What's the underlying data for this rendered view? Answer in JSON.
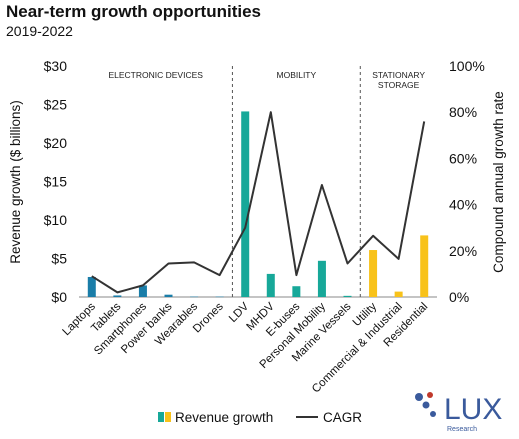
{
  "title": "Near-term growth opportunities",
  "subtitle": "2019-2022",
  "colors": {
    "teal": "#17A899",
    "blue": "#1A7DA8",
    "yellow": "#F8C21A",
    "line": "#333333",
    "divider": "#555555",
    "logo_blue": "#3A5A9C",
    "logo_red": "#C0392B"
  },
  "logo": {
    "name": "LUX",
    "tagline": "Research"
  },
  "chart_data": {
    "type": "bar",
    "categories": [
      "Laptops",
      "Tablets",
      "Smartphones",
      "Power banks",
      "Wearables",
      "Drones",
      "LDV",
      "MHDV",
      "E-buses",
      "Personal Mobility",
      "Marine Vessels",
      "Utility",
      "Commercial & Industrial",
      "Residential"
    ],
    "groups": [
      {
        "label": "ELECTRONIC DEVICES",
        "label_lines": [
          "ELECTRONIC DEVICES"
        ],
        "start": 0,
        "end": 5
      },
      {
        "label": "MOBILITY",
        "label_lines": [
          "MOBILITY"
        ],
        "start": 6,
        "end": 10
      },
      {
        "label": "STATIONARY STORAGE",
        "label_lines": [
          "STATIONARY",
          "STORAGE"
        ],
        "start": 11,
        "end": 13
      }
    ],
    "series": [
      {
        "name": "Revenue growth",
        "kind": "bar",
        "axis": "left",
        "values": [
          2.6,
          0.2,
          1.5,
          0.3,
          0.05,
          0.05,
          24.1,
          3.0,
          1.4,
          4.7,
          0.15,
          6.1,
          0.7,
          8.0
        ],
        "colors": [
          "blue",
          "blue",
          "blue",
          "blue",
          "blue",
          "blue",
          "teal",
          "teal",
          "teal",
          "teal",
          "teal",
          "yellow",
          "yellow",
          "yellow"
        ]
      },
      {
        "name": "CAGR",
        "kind": "line",
        "axis": "right",
        "values": [
          9,
          2,
          5,
          14.5,
          15,
          9.5,
          30,
          80,
          9.5,
          48.5,
          14.5,
          26.5,
          16.5,
          76
        ]
      }
    ],
    "ylabel": "Revenue growth ($ billions)",
    "ylim": [
      0,
      30
    ],
    "yticks": [
      0,
      5,
      10,
      15,
      20,
      25,
      30
    ],
    "ytick_labels": [
      "$0",
      "$5",
      "$10",
      "$15",
      "$20",
      "$25",
      "$30"
    ],
    "y2label": "Compound annual growth rate",
    "y2lim": [
      0,
      100
    ],
    "y2ticks": [
      0,
      20,
      40,
      60,
      80,
      100
    ],
    "y2tick_labels": [
      "0%",
      "20%",
      "40%",
      "60%",
      "80%",
      "100%"
    ],
    "legend": "bottom",
    "grid": false
  }
}
